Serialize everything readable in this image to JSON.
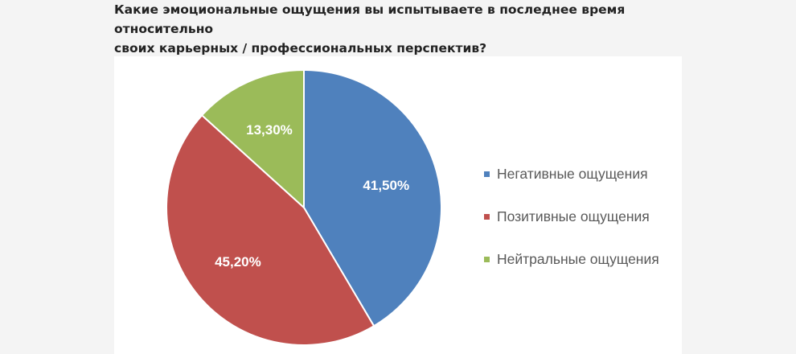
{
  "question": "Какие эмоциональные ощущения вы испытываете в последнее время относительно\nсвоих карьерных / профессиональных перспектив?",
  "chart_data": {
    "type": "pie",
    "title": "",
    "legend_position": "right",
    "slices": [
      {
        "name": "Негативные ощущения",
        "value": 41.5,
        "label": "41,50%",
        "color": "#4f81bd"
      },
      {
        "name": "Позитивные ощущения",
        "value": 45.2,
        "label": "45,20%",
        "color": "#c0504d"
      },
      {
        "name": "Нейтральные ощущения",
        "value": 13.3,
        "label": "13,30%",
        "color": "#9bbb59"
      }
    ]
  }
}
